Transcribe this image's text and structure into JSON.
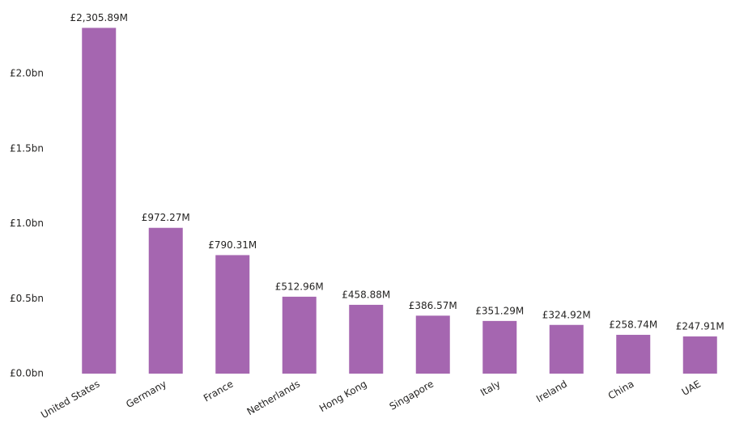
{
  "chart_data": {
    "type": "bar",
    "categories": [
      "United States",
      "Germany",
      "France",
      "Netherlands",
      "Hong Kong",
      "Singapore",
      "Italy",
      "Ireland",
      "China",
      "UAE"
    ],
    "values": [
      2.30589,
      0.97227,
      0.79031,
      0.51296,
      0.45888,
      0.38657,
      0.35129,
      0.32492,
      0.25874,
      0.24791
    ],
    "value_labels": [
      "£2,305.89M",
      "£972.27M",
      "£790.31M",
      "£512.96M",
      "£458.88M",
      "£386.57M",
      "£351.29M",
      "£324.92M",
      "£258.74M",
      "£247.91M"
    ],
    "color": "#a566b0",
    "ylim": [
      0,
      2.4
    ],
    "yticks": [
      {
        "value": 0,
        "label": "£0.0bn"
      },
      {
        "value": 0.5,
        "label": "£0.5bn"
      },
      {
        "value": 1.0,
        "label": "£1.0bn"
      },
      {
        "value": 1.5,
        "label": "£1.5bn"
      },
      {
        "value": 2.0,
        "label": "£2.0bn"
      }
    ],
    "grid": false
  }
}
